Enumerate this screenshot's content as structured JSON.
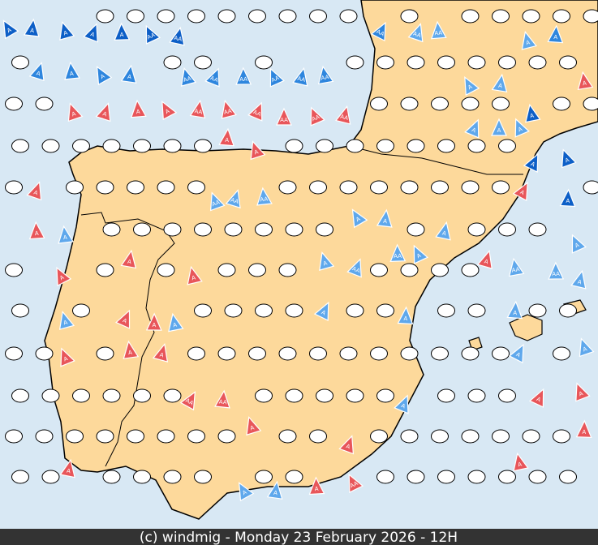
{
  "footer": "(c) windmig - Monday 23 February 2026 - 12H",
  "markers": [
    {
      "label": "A",
      "color": "#0d5fc7"
    },
    {
      "label": "A",
      "color": "#0d5fc7"
    },
    {
      "label": "A",
      "color": "#0d5fc7"
    },
    {
      "label": "A",
      "color": "#0d5fc7"
    },
    {
      "label": "A",
      "color": "#0d5fc7"
    },
    {
      "label": "AA",
      "color": "#0d5fc7"
    },
    {
      "label": "AA",
      "color": "#0d5fc7"
    },
    {
      "label": "A",
      "color": "#0d5fc7"
    },
    {
      "label": "A",
      "color": "#0d5fc7"
    },
    {
      "label": "A",
      "color": "#0d5fc7"
    },
    {
      "label": "A",
      "color": "#0d5fc7"
    },
    {
      "label": "A",
      "color": "#2e86de"
    },
    {
      "label": "A",
      "color": "#2e86de"
    },
    {
      "label": "A",
      "color": "#2e86de"
    },
    {
      "label": "A",
      "color": "#2e86de"
    },
    {
      "label": "AA",
      "color": "#2e86de"
    },
    {
      "label": "AA",
      "color": "#2e86de"
    },
    {
      "label": "AA",
      "color": "#2e86de"
    },
    {
      "label": "AA",
      "color": "#2e86de"
    },
    {
      "label": "AA",
      "color": "#2e86de"
    },
    {
      "label": "AA",
      "color": "#2e86de"
    },
    {
      "label": "AA",
      "color": "#2e86de"
    },
    {
      "label": "A",
      "color": "#2e86de"
    },
    {
      "label": "A",
      "color": "#e8565a"
    },
    {
      "label": "A",
      "color": "#e8565a"
    },
    {
      "label": "A",
      "color": "#e8565a"
    },
    {
      "label": "A",
      "color": "#e8565a"
    },
    {
      "label": "AA",
      "color": "#e8565a"
    },
    {
      "label": "AA",
      "color": "#e8565a"
    },
    {
      "label": "AA",
      "color": "#e8565a"
    },
    {
      "label": "AA",
      "color": "#e8565a"
    },
    {
      "label": "AA",
      "color": "#e8565a"
    },
    {
      "label": "AA",
      "color": "#e8565a"
    },
    {
      "label": "A",
      "color": "#e8565a"
    },
    {
      "label": "A",
      "color": "#e8565a"
    },
    {
      "label": "A",
      "color": "#e8565a"
    },
    {
      "label": "A",
      "color": "#e8565a"
    },
    {
      "label": "A",
      "color": "#e8565a"
    },
    {
      "label": "A",
      "color": "#e8565a"
    },
    {
      "label": "A",
      "color": "#e8565a"
    },
    {
      "label": "A",
      "color": "#e8565a"
    },
    {
      "label": "A",
      "color": "#e8565a"
    },
    {
      "label": "A",
      "color": "#e8565a"
    },
    {
      "label": "A",
      "color": "#e8565a"
    },
    {
      "label": "A",
      "color": "#e8565a"
    },
    {
      "label": "A",
      "color": "#e8565a"
    },
    {
      "label": "A",
      "color": "#e8565a"
    },
    {
      "label": "AA",
      "color": "#e8565a"
    },
    {
      "label": "AA",
      "color": "#e8565a"
    },
    {
      "label": "A",
      "color": "#e8565a"
    },
    {
      "label": "A",
      "color": "#e8565a"
    },
    {
      "label": "A",
      "color": "#e8565a"
    },
    {
      "label": "AA",
      "color": "#e8565a"
    },
    {
      "label": "A",
      "color": "#e8565a"
    },
    {
      "label": "A",
      "color": "#e8565a"
    },
    {
      "label": "A",
      "color": "#e8565a"
    },
    {
      "label": "A",
      "color": "#e8565a"
    },
    {
      "label": "A",
      "color": "#e8565a"
    },
    {
      "label": "A",
      "color": "#e8565a"
    },
    {
      "label": "A",
      "color": "#5fa8ec"
    },
    {
      "label": "A",
      "color": "#5fa8ec"
    },
    {
      "label": "A",
      "color": "#5fa8ec"
    },
    {
      "label": "A",
      "color": "#5fa8ec"
    },
    {
      "label": "AA",
      "color": "#5fa8ec"
    },
    {
      "label": "AA",
      "color": "#5fa8ec"
    },
    {
      "label": "A",
      "color": "#5fa8ec"
    },
    {
      "label": "A",
      "color": "#5fa8ec"
    },
    {
      "label": "A",
      "color": "#5fa8ec"
    },
    {
      "label": "A",
      "color": "#5fa8ec"
    },
    {
      "label": "A",
      "color": "#5fa8ec"
    },
    {
      "label": "AA",
      "color": "#5fa8ec"
    },
    {
      "label": "AA",
      "color": "#5fa8ec"
    },
    {
      "label": "AA",
      "color": "#5fa8ec"
    },
    {
      "label": "A",
      "color": "#5fa8ec"
    },
    {
      "label": "A",
      "color": "#5fa8ec"
    },
    {
      "label": "A",
      "color": "#5fa8ec"
    },
    {
      "label": "A",
      "color": "#5fa8ec"
    },
    {
      "label": "AA",
      "color": "#5fa8ec"
    },
    {
      "label": "A",
      "color": "#5fa8ec"
    },
    {
      "label": "A",
      "color": "#5fa8ec"
    },
    {
      "label": "AA",
      "color": "#5fa8ec"
    },
    {
      "label": "A",
      "color": "#5fa8ec"
    },
    {
      "label": "A",
      "color": "#5fa8ec"
    },
    {
      "label": "A",
      "color": "#5fa8ec"
    },
    {
      "label": "AA",
      "color": "#5fa8ec"
    },
    {
      "label": "AA",
      "color": "#5fa8ec"
    },
    {
      "label": "A",
      "color": "#5fa8ec"
    },
    {
      "label": "A",
      "color": "#5fa8ec"
    },
    {
      "label": "A",
      "color": "#5fa8ec"
    },
    {
      "label": "A",
      "color": "#5fa8ec"
    },
    {
      "label": "A",
      "color": "#5fa8ec"
    },
    {
      "label": "A",
      "color": "#5fa8ec"
    }
  ]
}
